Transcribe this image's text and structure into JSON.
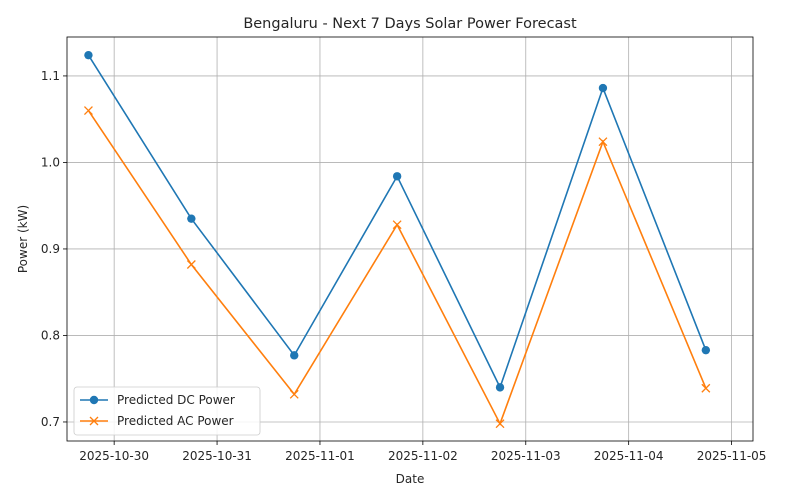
{
  "chart_data": {
    "type": "line",
    "title": "Bengaluru - Next 7 Days Solar Power Forecast",
    "xlabel": "Date",
    "ylabel": "Power (kW)",
    "x": [
      "2025-10-29T18:00",
      "2025-10-30T18:00",
      "2025-10-31T18:00",
      "2025-11-01T18:00",
      "2025-11-02T18:00",
      "2025-11-03T18:00",
      "2025-11-04T18:00"
    ],
    "x_ticks": [
      "2025-10-30",
      "2025-10-31",
      "2025-11-01",
      "2025-11-02",
      "2025-11-03",
      "2025-11-04",
      "2025-11-05"
    ],
    "xlim": [
      "2025-10-29T13:00",
      "2025-11-05T05:00"
    ],
    "y_ticks": [
      0.7,
      0.8,
      0.9,
      1.0,
      1.1
    ],
    "y_tick_labels": [
      "0.7",
      "0.8",
      "0.9",
      "1.0",
      "1.1"
    ],
    "ylim": [
      0.678,
      1.145
    ],
    "grid": true,
    "legend_position": "lower-left",
    "series": [
      {
        "name": "Predicted DC Power",
        "marker": "circle",
        "color": "#1f77b4",
        "values": [
          1.124,
          0.935,
          0.777,
          0.984,
          0.74,
          1.086,
          0.783
        ]
      },
      {
        "name": "Predicted AC Power",
        "marker": "x",
        "color": "#ff7f0e",
        "values": [
          1.06,
          0.882,
          0.732,
          0.928,
          0.698,
          1.024,
          0.739
        ]
      }
    ]
  }
}
